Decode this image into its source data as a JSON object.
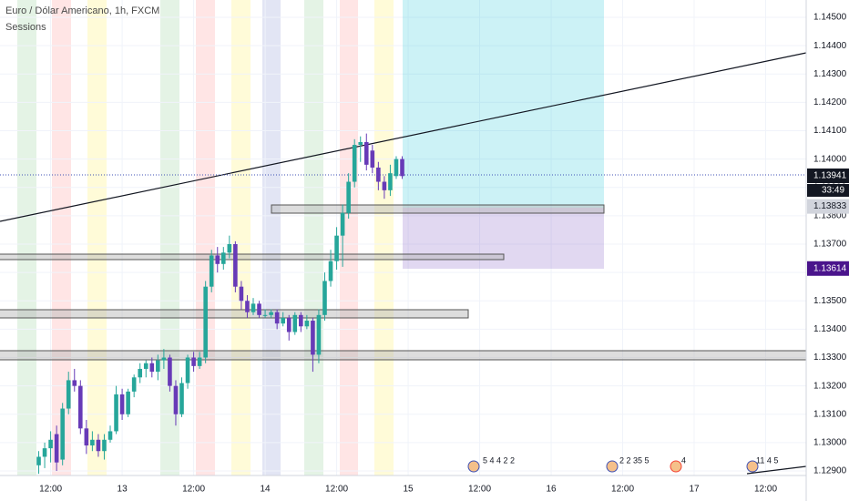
{
  "title": "Euro / Dólar Americano, 1h, FXCM",
  "indicator": "Sessions",
  "events": [
    "5 4 4 2 2",
    "2 2 35 5",
    "4",
    "11 4 5"
  ],
  "chart_data": {
    "type": "candlestick",
    "up_color": "#26a69a",
    "down_color": "#673ab7",
    "grid": true,
    "x": [
      -14,
      -13,
      -12,
      -11,
      -10,
      -9,
      -8,
      -7,
      -6,
      -5,
      -4,
      -3,
      -2,
      -1,
      0,
      1,
      2,
      3,
      4,
      5,
      6,
      7,
      8,
      9,
      10,
      11,
      12,
      13,
      14,
      15,
      16,
      17,
      18,
      19,
      20,
      21,
      22,
      23,
      24,
      25,
      26,
      27,
      28,
      29,
      30,
      31,
      32,
      33,
      34,
      35,
      36,
      37,
      38,
      39,
      40,
      41,
      42,
      43,
      44,
      45,
      46,
      47
    ],
    "open": [
      1.1292,
      1.1295,
      1.1298,
      1.1303,
      1.1294,
      1.1312,
      1.1322,
      1.132,
      1.1305,
      1.1299,
      1.1301,
      1.1297,
      1.1301,
      1.1304,
      1.1317,
      1.131,
      1.1318,
      1.1323,
      1.1326,
      1.1328,
      1.1325,
      1.1329,
      1.133,
      1.132,
      1.131,
      1.1321,
      1.133,
      1.1327,
      1.133,
      1.1355,
      1.1366,
      1.1363,
      1.1367,
      1.137,
      1.1355,
      1.135,
      1.1346,
      1.1349,
      1.1345,
      1.1345,
      1.1346,
      1.1342,
      1.1344,
      1.1339,
      1.1345,
      1.1341,
      1.1343,
      1.1331,
      1.1345,
      1.1357,
      1.1364,
      1.1373,
      1.1381,
      1.1392,
      1.1405,
      1.1406,
      1.1403,
      1.1397,
      1.1392,
      1.1389,
      1.1394,
      1.14
    ],
    "high": [
      1.1297,
      1.13,
      1.1304,
      1.1306,
      1.1314,
      1.1325,
      1.1326,
      1.1322,
      1.1308,
      1.1304,
      1.1303,
      1.1303,
      1.1306,
      1.132,
      1.1319,
      1.1319,
      1.1324,
      1.1328,
      1.1329,
      1.133,
      1.1331,
      1.1333,
      1.1331,
      1.1322,
      1.1323,
      1.1331,
      1.1332,
      1.1332,
      1.1357,
      1.1368,
      1.1369,
      1.1369,
      1.1373,
      1.1371,
      1.1357,
      1.1352,
      1.1351,
      1.135,
      1.1347,
      1.1347,
      1.1347,
      1.1346,
      1.1345,
      1.1346,
      1.1346,
      1.1345,
      1.1344,
      1.1347,
      1.136,
      1.1368,
      1.1376,
      1.1384,
      1.1395,
      1.1407,
      1.1408,
      1.1409,
      1.1405,
      1.1399,
      1.1394,
      1.1398,
      1.1401,
      1.1401
    ],
    "low": [
      1.1289,
      1.1291,
      1.1293,
      1.129,
      1.1292,
      1.131,
      1.1318,
      1.1303,
      1.1296,
      1.1297,
      1.1295,
      1.1294,
      1.13,
      1.1303,
      1.1308,
      1.1309,
      1.1316,
      1.1321,
      1.1323,
      1.1323,
      1.1322,
      1.1326,
      1.1318,
      1.1306,
      1.1309,
      1.1319,
      1.1325,
      1.1326,
      1.1328,
      1.1353,
      1.136,
      1.1361,
      1.1365,
      1.1353,
      1.1347,
      1.1344,
      1.1345,
      1.1344,
      1.1344,
      1.1344,
      1.134,
      1.1341,
      1.1336,
      1.1338,
      1.1339,
      1.134,
      1.1325,
      1.1328,
      1.1343,
      1.1355,
      1.1361,
      1.1362,
      1.1379,
      1.139,
      1.1399,
      1.1396,
      1.1395,
      1.1389,
      1.1386,
      1.1387,
      1.1393,
      1.1393
    ],
    "close": [
      1.1295,
      1.1298,
      1.1301,
      1.1293,
      1.1312,
      1.1322,
      1.132,
      1.1305,
      1.1299,
      1.1301,
      1.1297,
      1.1301,
      1.1304,
      1.1317,
      1.131,
      1.1318,
      1.1323,
      1.1326,
      1.1328,
      1.1325,
      1.1329,
      1.133,
      1.132,
      1.131,
      1.1321,
      1.133,
      1.1327,
      1.133,
      1.1355,
      1.1366,
      1.1363,
      1.1367,
      1.137,
      1.1355,
      1.135,
      1.1346,
      1.1349,
      1.1345,
      1.1345,
      1.1346,
      1.1342,
      1.1344,
      1.1339,
      1.1345,
      1.1341,
      1.1343,
      1.1331,
      1.1345,
      1.1357,
      1.1364,
      1.1373,
      1.1381,
      1.1392,
      1.1405,
      1.1406,
      1.1398,
      1.1397,
      1.1392,
      1.1389,
      1.1395,
      1.14,
      1.1394
    ],
    "xlim": [
      -20.5,
      114.8
    ],
    "ylim": [
      1.12884,
      1.14561
    ],
    "xticks": [
      {
        "value": -12,
        "label": "12:00"
      },
      {
        "value": 0,
        "label": "13"
      },
      {
        "value": 12,
        "label": "12:00"
      },
      {
        "value": 24,
        "label": "14"
      },
      {
        "value": 36,
        "label": "12:00"
      },
      {
        "value": 48,
        "label": "15"
      },
      {
        "value": 60,
        "label": "12:00"
      },
      {
        "value": 72,
        "label": "16"
      },
      {
        "value": 84,
        "label": "12:00"
      },
      {
        "value": 96,
        "label": "17"
      },
      {
        "value": 108,
        "label": "12:00"
      }
    ],
    "yticks": [
      {
        "value": 1.145,
        "label": "1.14500"
      },
      {
        "value": 1.144,
        "label": "1.14400"
      },
      {
        "value": 1.143,
        "label": "1.14300"
      },
      {
        "value": 1.142,
        "label": "1.14200"
      },
      {
        "value": 1.141,
        "label": "1.14100"
      },
      {
        "value": 1.14,
        "label": "1.14000"
      },
      {
        "value": 1.139,
        "label": "1.13900"
      },
      {
        "value": 1.138,
        "label": "1.13800"
      },
      {
        "value": 1.137,
        "label": "1.13700"
      },
      {
        "value": 1.136,
        "label": "1.13600"
      },
      {
        "value": 1.135,
        "label": "1.13500"
      },
      {
        "value": 1.134,
        "label": "1.13400"
      },
      {
        "value": 1.133,
        "label": "1.13300"
      },
      {
        "value": 1.132,
        "label": "1.13200"
      },
      {
        "value": 1.131,
        "label": "1.13100"
      },
      {
        "value": 1.13,
        "label": "1.13000"
      },
      {
        "value": 1.129,
        "label": "1.12900"
      }
    ],
    "price_labels": [
      {
        "value": 1.13941,
        "label": "1.13941",
        "color": "#131722"
      },
      {
        "value": 1.13833,
        "label": "1.13833",
        "color": "#d1d4dc"
      },
      {
        "value": 1.13614,
        "label": "1.13614",
        "color": "#4a148c"
      }
    ],
    "countdown": "33:49"
  }
}
